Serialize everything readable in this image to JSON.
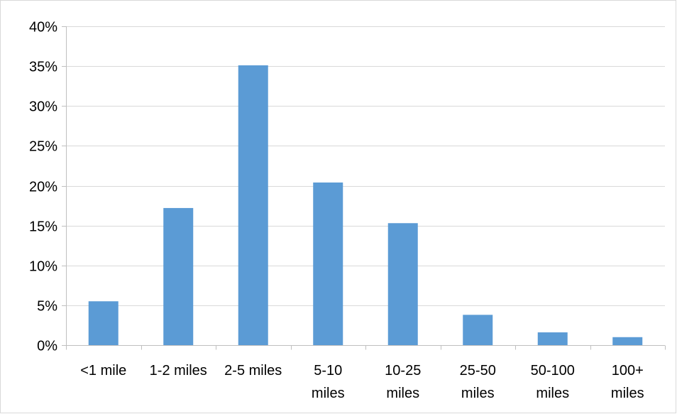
{
  "chart_data": {
    "type": "bar",
    "categories": [
      [
        "<1 mile"
      ],
      [
        "1-2 miles"
      ],
      [
        "2-5 miles"
      ],
      [
        "5-10",
        "miles"
      ],
      [
        "10-25",
        "miles"
      ],
      [
        "25-50",
        "miles"
      ],
      [
        "50-100",
        "miles"
      ],
      [
        "100+",
        "miles"
      ]
    ],
    "values": [
      5.5,
      17.2,
      35.1,
      20.4,
      15.3,
      3.8,
      1.6,
      1.0
    ],
    "ylim": [
      0,
      40
    ],
    "yticks": [
      "0%",
      "5%",
      "10%",
      "15%",
      "20%",
      "25%",
      "30%",
      "35%",
      "40%"
    ],
    "ytick_values": [
      0,
      5,
      10,
      15,
      20,
      25,
      30,
      35,
      40
    ],
    "grid": true,
    "bar_color": "#5b9bd5",
    "grid_color": "#d9d9d9",
    "axis_color": "#bfbfbf"
  }
}
